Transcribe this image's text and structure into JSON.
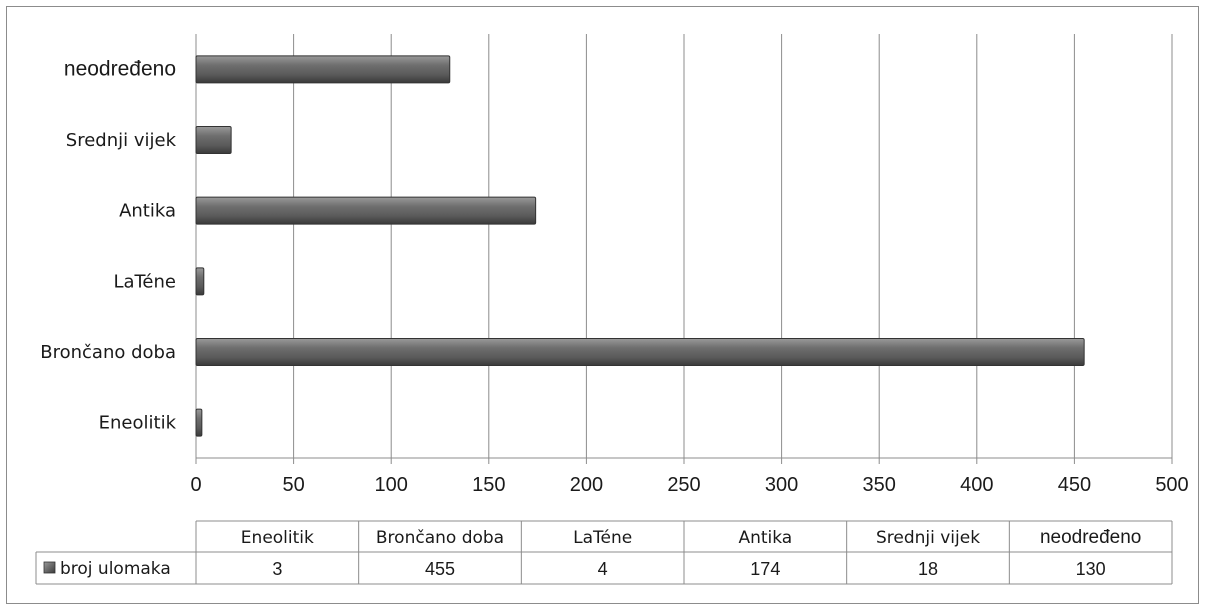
{
  "chart_data": {
    "type": "bar",
    "orientation": "horizontal",
    "categories": [
      "Eneolitik",
      "Brončano doba",
      "LaTéne",
      "Antika",
      "Srednji vijek",
      "neodređeno"
    ],
    "series": [
      {
        "name": "broj ulomaka",
        "values": [
          3,
          455,
          4,
          174,
          18,
          130
        ]
      }
    ],
    "xlim": [
      0,
      500
    ],
    "xticks": [
      0,
      50,
      100,
      150,
      200,
      250,
      300,
      350,
      400,
      450,
      500
    ],
    "grid": "vertical",
    "legend": "data-table-below",
    "colors": {
      "bar": "#5a5a5a",
      "grid": "#8c8c8c"
    }
  }
}
